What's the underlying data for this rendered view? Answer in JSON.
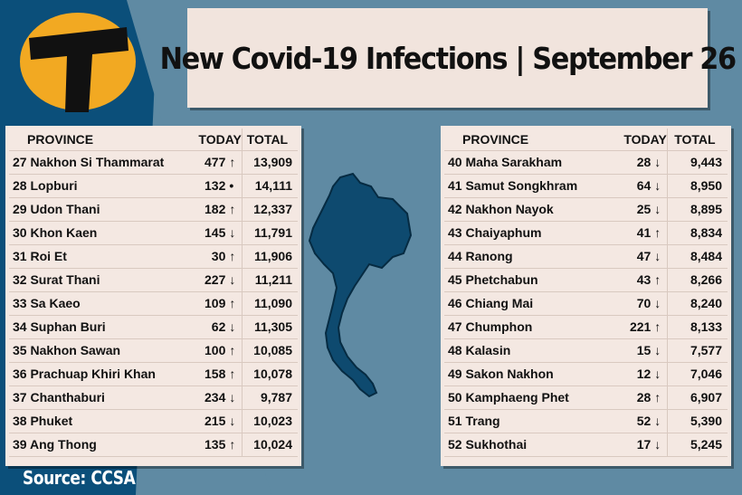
{
  "title": "New Covid-19 Infections | September 26",
  "source": "Source: CCSA",
  "colors": {
    "background": "#5f8aa3",
    "dark_band": "#0b4f7a",
    "logo_yellow": "#f2a922",
    "panel": "#f4e8e2",
    "map": "#0e4a6f"
  },
  "headers": {
    "province": "PROVINCE",
    "today": "TODAY",
    "total": "TOTAL"
  },
  "left_rows": [
    {
      "rank": "27",
      "province": "Nakhon Si Thammarat",
      "today": "477",
      "trend": "↑",
      "total": "13,909"
    },
    {
      "rank": "28",
      "province": "Lopburi",
      "today": "132",
      "trend": "•",
      "total": "14,111"
    },
    {
      "rank": "29",
      "province": "Udon Thani",
      "today": "182",
      "trend": "↑",
      "total": "12,337"
    },
    {
      "rank": "30",
      "province": "Khon Kaen",
      "today": "145",
      "trend": "↓",
      "total": "11,791"
    },
    {
      "rank": "31",
      "province": "Roi Et",
      "today": "30",
      "trend": "↑",
      "total": "11,906"
    },
    {
      "rank": "32",
      "province": "Surat Thani",
      "today": "227",
      "trend": "↓",
      "total": "11,211"
    },
    {
      "rank": "33",
      "province": "Sa Kaeo",
      "today": "109",
      "trend": "↑",
      "total": "11,090"
    },
    {
      "rank": "34",
      "province": "Suphan Buri",
      "today": "62",
      "trend": "↓",
      "total": "11,305"
    },
    {
      "rank": "35",
      "province": "Nakhon Sawan",
      "today": "100",
      "trend": "↑",
      "total": "10,085"
    },
    {
      "rank": "36",
      "province": "Prachuap Khiri Khan",
      "today": "158",
      "trend": "↑",
      "total": "10,078"
    },
    {
      "rank": "37",
      "province": "Chanthaburi",
      "today": "234",
      "trend": "↓",
      "total": "9,787"
    },
    {
      "rank": "38",
      "province": "Phuket",
      "today": "215",
      "trend": "↓",
      "total": "10,023"
    },
    {
      "rank": "39",
      "province": "Ang Thong",
      "today": "135",
      "trend": "↑",
      "total": "10,024"
    }
  ],
  "right_rows": [
    {
      "rank": "40",
      "province": "Maha Sarakham",
      "today": "28",
      "trend": "↓",
      "total": "9,443"
    },
    {
      "rank": "41",
      "province": "Samut Songkhram",
      "today": "64",
      "trend": "↓",
      "total": "8,950"
    },
    {
      "rank": "42",
      "province": "Nakhon Nayok",
      "today": "25",
      "trend": "↓",
      "total": "8,895"
    },
    {
      "rank": "43",
      "province": "Chaiyaphum",
      "today": "41",
      "trend": "↑",
      "total": "8,834"
    },
    {
      "rank": "44",
      "province": "Ranong",
      "today": "47",
      "trend": "↓",
      "total": "8,484"
    },
    {
      "rank": "45",
      "province": "Phetchabun",
      "today": "43",
      "trend": "↑",
      "total": "8,266"
    },
    {
      "rank": "46",
      "province": "Chiang Mai",
      "today": "70",
      "trend": "↓",
      "total": "8,240"
    },
    {
      "rank": "47",
      "province": "Chumphon",
      "today": "221",
      "trend": "↑",
      "total": "8,133"
    },
    {
      "rank": "48",
      "province": "Kalasin",
      "today": "15",
      "trend": "↓",
      "total": "7,577"
    },
    {
      "rank": "49",
      "province": "Sakon Nakhon",
      "today": "12",
      "trend": "↓",
      "total": "7,046"
    },
    {
      "rank": "50",
      "province": "Kamphaeng Phet",
      "today": "28",
      "trend": "↑",
      "total": "6,907"
    },
    {
      "rank": "51",
      "province": "Trang",
      "today": "52",
      "trend": "↓",
      "total": "5,390"
    },
    {
      "rank": "52",
      "province": "Sukhothai",
      "today": "17",
      "trend": "↓",
      "total": "5,245"
    }
  ]
}
